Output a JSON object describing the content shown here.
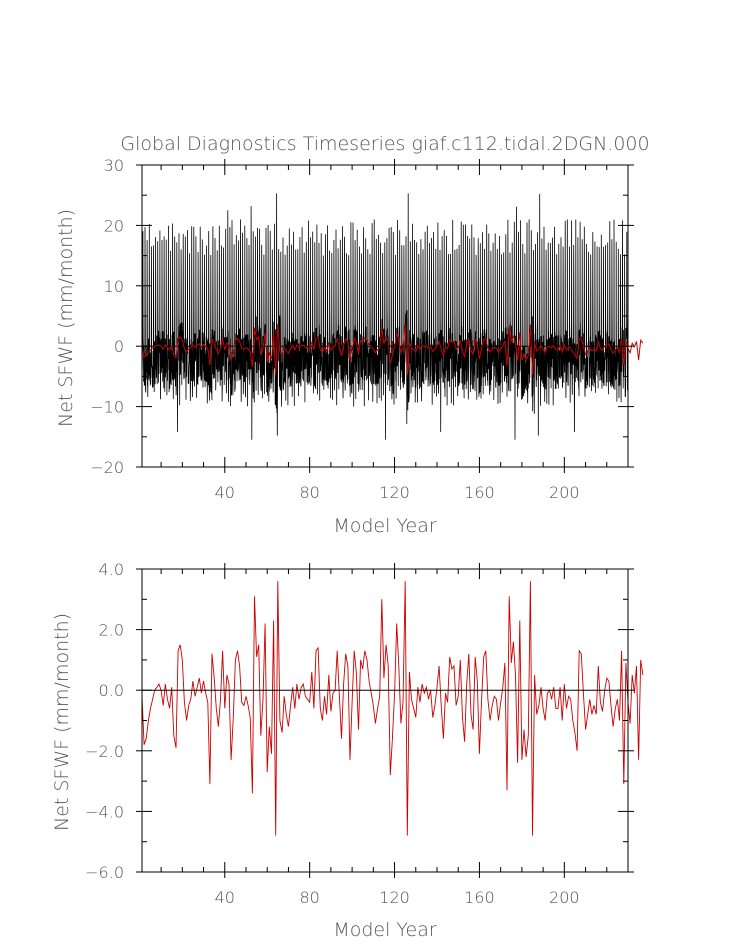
{
  "chart_data": [
    {
      "type": "line",
      "title": "Global Diagnostics Timeseries giaf.c112.tidal.2DGN.000",
      "xlabel": "Model Year",
      "ylabel": "Net SFWF (mm/month)",
      "xlim": [
        1,
        230
      ],
      "ylim": [
        -20,
        30
      ],
      "xticks": [
        40,
        80,
        120,
        160,
        200
      ],
      "yticks": [
        -20,
        -10,
        0,
        10,
        20,
        30
      ],
      "xtick_labels": [
        "40",
        "80",
        "120",
        "160",
        "200"
      ],
      "ytick_labels": [
        "−20",
        "−10",
        "0",
        "10",
        "20",
        "30"
      ],
      "zero_line": true,
      "grid": false,
      "series": [
        {
          "color": "#000000",
          "resolution": "monthly",
          "x_start": 1,
          "x_end": 230,
          "seasonal_max_approx": 19,
          "seasonal_min_approx": -10,
          "peak_values": [
            {
              "x": 41,
              "y": 22.5
            },
            {
              "x": 52,
              "y": 23.2
            },
            {
              "x": 64,
              "y": 25.3
            },
            {
              "x": 126,
              "y": 25.3
            },
            {
              "x": 177,
              "y": 23.1
            },
            {
              "x": 188,
              "y": 25.2
            }
          ],
          "trough_values": [
            {
              "x": 17,
              "y": -14.2
            },
            {
              "x": 52,
              "y": -15.5
            },
            {
              "x": 64,
              "y": -14.8
            },
            {
              "x": 115,
              "y": -15.5
            },
            {
              "x": 125,
              "y": -12.9
            },
            {
              "x": 141,
              "y": -14.2
            },
            {
              "x": 176,
              "y": -15.5
            },
            {
              "x": 187,
              "y": -14.8
            },
            {
              "x": 204,
              "y": -14.2
            }
          ]
        },
        {
          "color": "#cc0000",
          "resolution": "annual mean",
          "ref": "annual_mean"
        }
      ]
    },
    {
      "type": "line",
      "title": "",
      "xlabel": "Model Year",
      "ylabel": "Net SFWF (mm/month)",
      "xlim": [
        1,
        230
      ],
      "ylim": [
        -6,
        4
      ],
      "xticks": [
        40,
        80,
        120,
        160,
        200
      ],
      "yticks": [
        -6,
        -4,
        -2,
        0,
        2,
        4
      ],
      "xtick_labels": [
        "40",
        "80",
        "120",
        "160",
        "200"
      ],
      "ytick_labels": [
        "−6.0",
        "−4.0",
        "−2.0",
        "0.0",
        "2.0",
        "4.0"
      ],
      "zero_line": true,
      "grid": false,
      "series": [
        {
          "color": "#cc0000",
          "ref": "annual_mean"
        }
      ]
    }
  ],
  "annual_mean": {
    "x_start": 1,
    "values": [
      -0.2,
      -1.8,
      -1.6,
      -1.0,
      -0.6,
      -0.3,
      0.0,
      0.1,
      0.2,
      0.0,
      -0.5,
      0.2,
      -0.3,
      -0.6,
      0.1,
      -1.5,
      -1.9,
      1.3,
      1.5,
      1.0,
      -0.4,
      -1.0,
      -0.5,
      -0.3,
      0.3,
      -0.2,
      0.1,
      0.4,
      -0.1,
      0.3,
      -0.1,
      -0.4,
      -3.1,
      1.2,
      0.4,
      -0.6,
      -1.2,
      -0.3,
      1.3,
      -0.6,
      0.5,
      0.2,
      -2.3,
      -0.9,
      1.0,
      1.3,
      0.8,
      -0.4,
      -0.5,
      -0.2,
      -0.5,
      -0.9,
      -3.4,
      3.1,
      1.1,
      1.5,
      -1.5,
      -0.3,
      2.2,
      -2.7,
      -1.2,
      -2.1,
      2.3,
      -4.8,
      3.6,
      -1.0,
      -1.4,
      -0.2,
      -0.8,
      -1.2,
      -0.5,
      0.1,
      -0.6,
      0.2,
      -0.3,
      0.1,
      0.2,
      -0.2,
      -0.3,
      -0.4,
      0.6,
      -0.6,
      1.3,
      1.4,
      -0.6,
      -1.0,
      -0.2,
      -0.8,
      0.5,
      -0.7,
      -0.1,
      0.0,
      1.3,
      -0.2,
      -1.6,
      0.2,
      1.2,
      0.8,
      -2.3,
      -0.4,
      1.3,
      0.6,
      -1.3,
      1.0,
      0.7,
      1.3,
      1.0,
      0.3,
      -0.1,
      -0.5,
      -1.1,
      -0.6,
      -0.2,
      3.0,
      0.4,
      1.5,
      0.8,
      -2.8,
      -1.6,
      -0.1,
      2.2,
      0.8,
      -1.1,
      -0.4,
      3.6,
      -4.8,
      0.6,
      -0.3,
      -0.6,
      -0.9,
      0.1,
      -0.4,
      0.2,
      -0.1,
      0.1,
      -0.3,
      0.0,
      -0.9,
      -0.5,
      0.1,
      0.8,
      -0.5,
      -1.6,
      -0.1,
      -0.4,
      1.1,
      0.7,
      0.8,
      -0.5,
      -0.2,
      1.0,
      -0.9,
      -1.7,
      0.2,
      1.2,
      -0.8,
      -1.3,
      1.1,
      0.3,
      -2.1,
      -0.3,
      1.1,
      1.3,
      -0.3,
      -1.0,
      -0.5,
      -0.2,
      -0.3,
      -1.0,
      -0.4,
      0.1,
      0.9,
      -3.3,
      3.1,
      0.9,
      1.6,
      0.5,
      -2.4,
      2.3,
      -2.3,
      -1.3,
      -2.2,
      -1.5,
      3.6,
      -4.8,
      0.5,
      -0.8,
      -0.5,
      0.1,
      -0.6,
      -1.0,
      -0.1,
      0.0,
      -0.3,
      0.1,
      -0.6,
      -0.6,
      0.1,
      -1.0,
      0.2,
      -0.6,
      -0.2,
      -0.3,
      -1.0,
      -1.4,
      -2.0,
      1.3,
      1.2,
      -0.1,
      -1.3,
      -0.8,
      -0.3,
      -0.8,
      -0.5,
      -0.8,
      0.8,
      -0.4,
      -0.7,
      0.0,
      0.4,
      0.3,
      -0.5,
      -1.2,
      -0.6,
      -0.3,
      -1.0,
      1.3,
      -3.1,
      0.9,
      -0.4,
      -1.1,
      0.5,
      -0.1,
      0.8,
      -2.3,
      1.0,
      0.5
    ]
  }
}
